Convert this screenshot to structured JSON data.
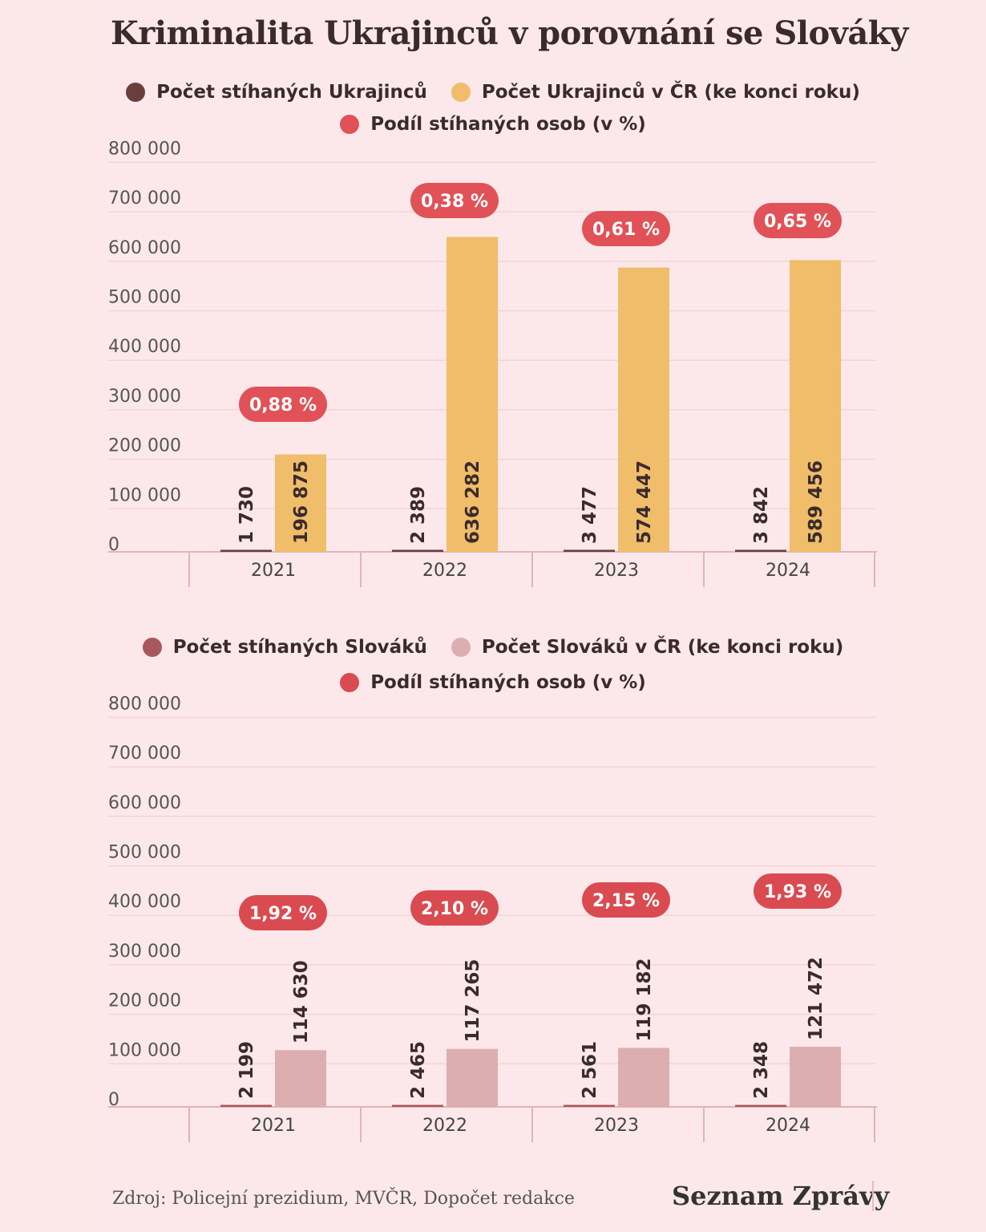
{
  "title": "Kriminalita Ukrajinců v porovnání se Slováky",
  "source": "Zdroj: Policejní prezidium, MVČR, Dopočet redakce",
  "brand": "Seznam Zprávy",
  "colors": {
    "background": "#fce8ea",
    "pill": "#e05257",
    "uk_prosecuted": "#6b3d3d",
    "uk_population": "#f0bd6a",
    "sk_prosecuted": "#a8585c",
    "sk_population": "#ddaeb0",
    "share": "#e05257"
  },
  "chart_data": [
    {
      "type": "bar",
      "legend": [
        "Počet stíhaných Ukrajinců",
        "Počet Ukrajinců v ČR (ke konci roku)",
        "Podíl stíhaných osob (v %)"
      ],
      "categories": [
        "2021",
        "2022",
        "2023",
        "2024"
      ],
      "y_ticks": [
        "800 000",
        "700 000",
        "600 000",
        "500 000",
        "400 000",
        "300 000",
        "200 000",
        "100 000",
        "0"
      ],
      "ylim": [
        0,
        800000
      ],
      "series": [
        {
          "name": "Počet stíhaných Ukrajinců",
          "values": [
            1730,
            2389,
            3477,
            3842
          ],
          "labels": [
            "1 730",
            "2 389",
            "3 477",
            "3 842"
          ]
        },
        {
          "name": "Počet Ukrajinců v ČR (ke konci roku)",
          "values": [
            196875,
            636282,
            574447,
            589456
          ],
          "labels": [
            "196 875",
            "636 282",
            "574 447",
            "589 456"
          ]
        }
      ],
      "share_labels": [
        "0,88 %",
        "0,38 %",
        "0,61 %",
        "0,65 %"
      ]
    },
    {
      "type": "bar",
      "legend": [
        "Počet stíhaných Slováků",
        "Počet Slováků v ČR (ke konci roku)",
        "Podíl stíhaných osob (v %)"
      ],
      "categories": [
        "2021",
        "2022",
        "2023",
        "2024"
      ],
      "y_ticks": [
        "800 000",
        "700 000",
        "600 000",
        "500 000",
        "400 000",
        "300 000",
        "200 000",
        "100 000",
        "0"
      ],
      "ylim": [
        0,
        800000
      ],
      "series": [
        {
          "name": "Počet stíhaných Slováků",
          "values": [
            2199,
            2465,
            2561,
            2348
          ],
          "labels": [
            "2 199",
            "2 465",
            "2 561",
            "2 348"
          ]
        },
        {
          "name": "Počet Slováků v ČR (ke konci roku)",
          "values": [
            114630,
            117265,
            119182,
            121472
          ],
          "labels": [
            "114 630",
            "117 265",
            "119 182",
            "121 472"
          ]
        }
      ],
      "share_labels": [
        "1,92 %",
        "2,10 %",
        "2,15 %",
        "1,93 %"
      ]
    }
  ]
}
